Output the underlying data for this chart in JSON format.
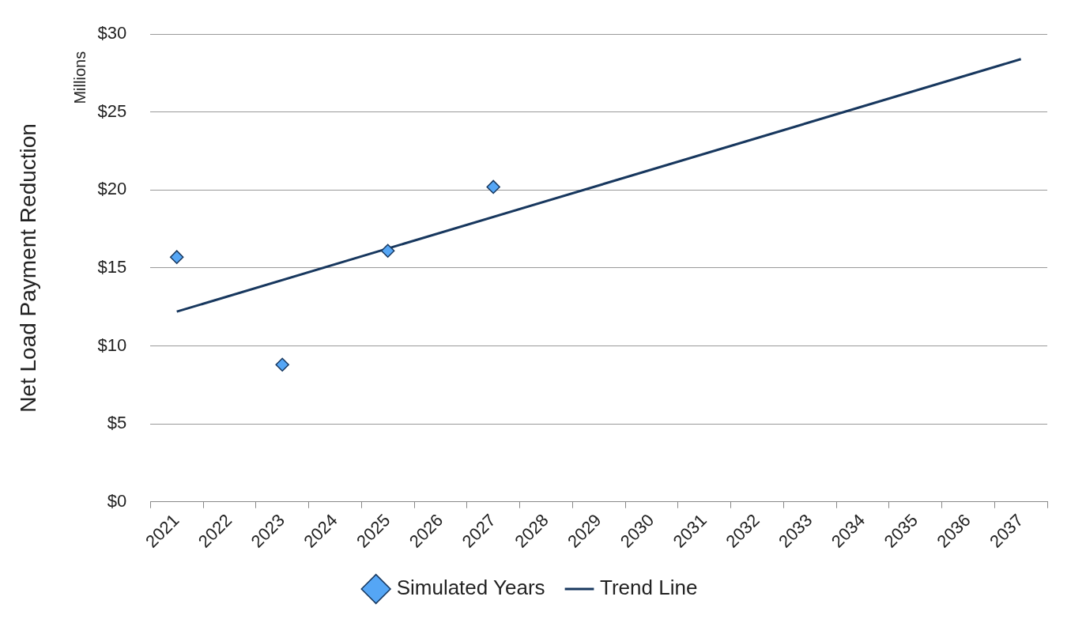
{
  "chart_data": {
    "type": "scatter",
    "ylabel": "Net Load Payment Reduction",
    "annotations": [
      "Millions"
    ],
    "categories": [
      "2021",
      "2022",
      "2023",
      "2024",
      "2025",
      "2026",
      "2027",
      "2028",
      "2029",
      "2030",
      "2031",
      "2032",
      "2033",
      "2034",
      "2035",
      "2036",
      "2037"
    ],
    "series": [
      {
        "name": "Simulated Years",
        "type": "scatter",
        "marker": "diamond",
        "color": "#55a6f5",
        "values": [
          15.7,
          null,
          8.8,
          null,
          16.1,
          null,
          20.2,
          null,
          null,
          null,
          null,
          null,
          null,
          null,
          null,
          null,
          null
        ]
      },
      {
        "name": "Trend Line",
        "type": "line",
        "marker": "none",
        "color": "#17375e",
        "values": [
          12.2,
          null,
          null,
          null,
          null,
          null,
          null,
          null,
          null,
          null,
          null,
          null,
          null,
          null,
          null,
          null,
          28.4
        ]
      }
    ],
    "ylim": [
      0,
      30
    ],
    "yticks": [
      {
        "value": 0,
        "label": "$0"
      },
      {
        "value": 5,
        "label": "$5"
      },
      {
        "value": 10,
        "label": "$10"
      },
      {
        "value": 15,
        "label": "$15"
      },
      {
        "value": 20,
        "label": "$20"
      },
      {
        "value": 25,
        "label": "$25"
      },
      {
        "value": 30,
        "label": "$30"
      }
    ],
    "grid": "y",
    "legend": "bottom"
  }
}
